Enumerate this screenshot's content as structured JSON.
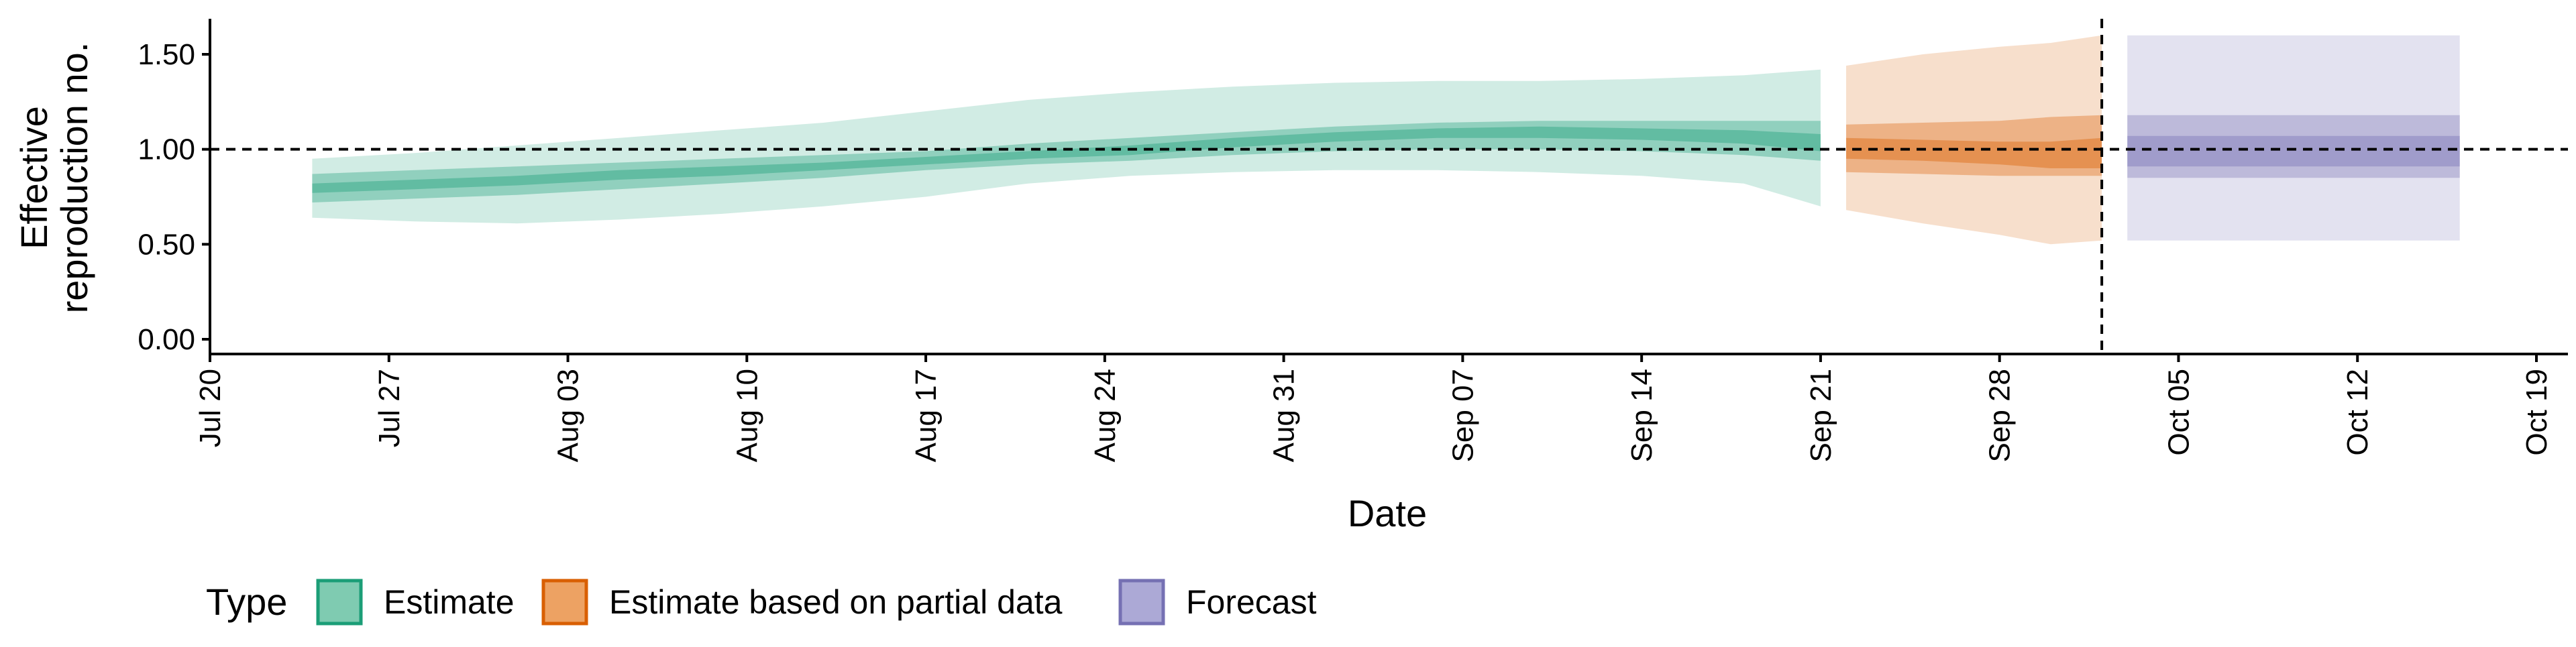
{
  "chart_data": {
    "type": "area",
    "title": "",
    "xlabel": "Date",
    "ylabel_lines": [
      "Effective",
      "reproduction no."
    ],
    "x_ticks": [
      "Jul 20",
      "Jul 27",
      "Aug 03",
      "Aug 10",
      "Aug 17",
      "Aug 24",
      "Aug 31",
      "Sep 07",
      "Sep 14",
      "Sep 21",
      "Sep 28",
      "Oct 05",
      "Oct 12",
      "Oct 19"
    ],
    "x_range": [
      "2020-07-20",
      "2020-10-19"
    ],
    "y_ticks": [
      "0.00",
      "0.50",
      "1.00",
      "1.50"
    ],
    "ylim": [
      0,
      1.7
    ],
    "reference_hline": 1.0,
    "reference_vline": "2020-10-02",
    "grid": false,
    "legend": {
      "title": "Type",
      "position": "bottom-left",
      "entries": [
        {
          "label": "Estimate",
          "fill": "#7fcbb1",
          "stroke": "#1b9e77"
        },
        {
          "label": "Estimate based on partial data",
          "fill": "#eda263",
          "stroke": "#d95f02"
        },
        {
          "label": "Forecast",
          "fill": "#aca9d6",
          "stroke": "#7570b3"
        }
      ]
    },
    "series": [
      {
        "name": "Estimate",
        "color": "#1b9e77",
        "x": [
          "2020-07-24",
          "2020-07-28",
          "2020-08-01",
          "2020-08-05",
          "2020-08-09",
          "2020-08-13",
          "2020-08-17",
          "2020-08-21",
          "2020-08-25",
          "2020-08-29",
          "2020-09-02",
          "2020-09-06",
          "2020-09-10",
          "2020-09-14",
          "2020-09-18",
          "2020-09-21"
        ],
        "median": [
          0.79,
          0.81,
          0.83,
          0.86,
          0.88,
          0.9,
          0.93,
          0.96,
          0.99,
          1.03,
          1.06,
          1.08,
          1.09,
          1.08,
          1.07,
          1.06
        ],
        "lower90": [
          0.64,
          0.62,
          0.61,
          0.63,
          0.66,
          0.7,
          0.75,
          0.82,
          0.86,
          0.88,
          0.89,
          0.89,
          0.88,
          0.86,
          0.82,
          0.7
        ],
        "upper90": [
          0.95,
          0.98,
          1.02,
          1.06,
          1.1,
          1.14,
          1.2,
          1.26,
          1.3,
          1.33,
          1.35,
          1.36,
          1.36,
          1.37,
          1.39,
          1.42
        ],
        "lower50": [
          0.72,
          0.74,
          0.76,
          0.79,
          0.82,
          0.85,
          0.89,
          0.92,
          0.94,
          0.97,
          0.99,
          1.0,
          1.0,
          0.99,
          0.97,
          0.94
        ],
        "upper50": [
          0.87,
          0.89,
          0.91,
          0.93,
          0.95,
          0.97,
          0.99,
          1.03,
          1.06,
          1.09,
          1.12,
          1.14,
          1.15,
          1.15,
          1.15,
          1.15
        ],
        "lower20": [
          0.77,
          0.79,
          0.81,
          0.84,
          0.86,
          0.89,
          0.92,
          0.95,
          0.97,
          1.01,
          1.04,
          1.06,
          1.06,
          1.05,
          1.03,
          0.99
        ],
        "upper20": [
          0.82,
          0.84,
          0.86,
          0.89,
          0.91,
          0.93,
          0.96,
          0.99,
          1.02,
          1.06,
          1.09,
          1.11,
          1.12,
          1.11,
          1.1,
          1.08
        ]
      },
      {
        "name": "Estimate based on partial data",
        "color": "#d95f02",
        "x": [
          "2020-09-22",
          "2020-09-25",
          "2020-09-28",
          "2020-09-30",
          "2020-10-02"
        ],
        "median": [
          1.01,
          1.0,
          0.98,
          0.97,
          0.98
        ],
        "lower90": [
          0.68,
          0.61,
          0.55,
          0.5,
          0.52
        ],
        "upper90": [
          1.44,
          1.5,
          1.54,
          1.56,
          1.6
        ],
        "lower50": [
          0.88,
          0.87,
          0.86,
          0.86,
          0.86
        ],
        "upper50": [
          1.13,
          1.14,
          1.15,
          1.17,
          1.18
        ],
        "lower20": [
          0.95,
          0.94,
          0.92,
          0.9,
          0.9
        ],
        "upper20": [
          1.06,
          1.05,
          1.04,
          1.04,
          1.06
        ]
      },
      {
        "name": "Forecast",
        "color": "#7570b3",
        "x": [
          "2020-10-03",
          "2020-10-16"
        ],
        "median": [
          1.0,
          1.0
        ],
        "lower90": [
          0.52,
          0.52
        ],
        "upper90": [
          1.6,
          1.6
        ],
        "lower50": [
          0.85,
          0.85
        ],
        "upper50": [
          1.18,
          1.18
        ],
        "lower20": [
          0.91,
          0.91
        ],
        "upper20": [
          1.07,
          1.07
        ]
      }
    ]
  }
}
